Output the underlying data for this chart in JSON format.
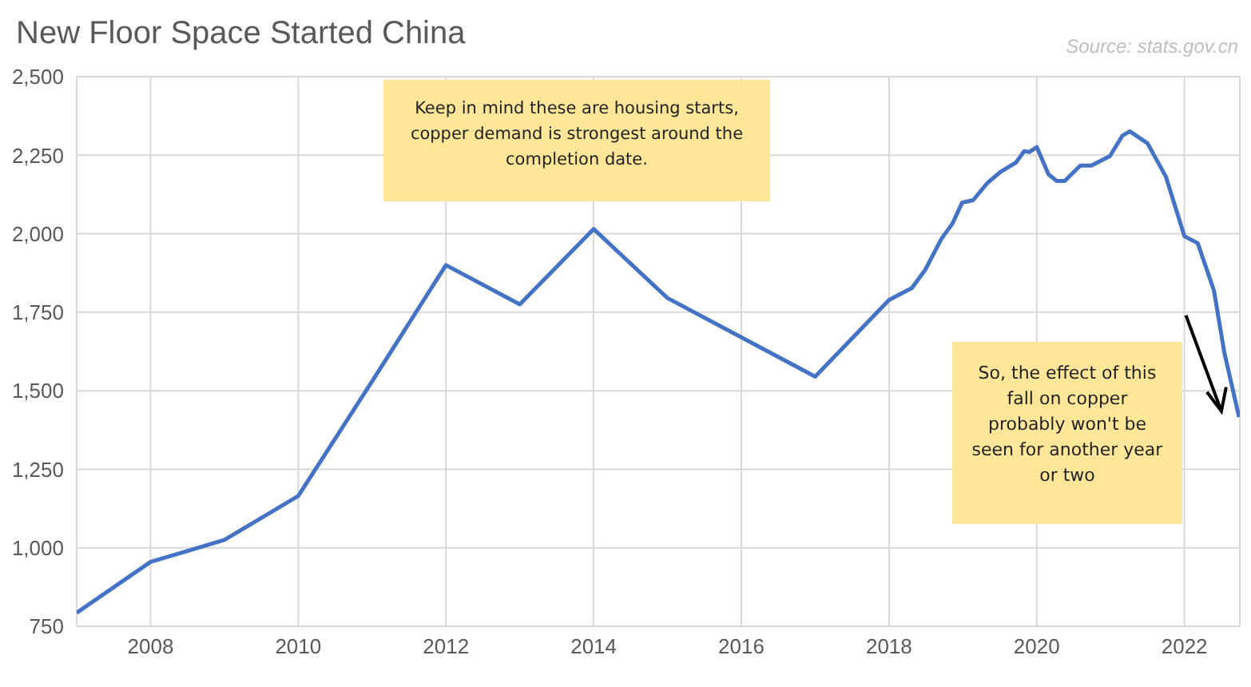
{
  "chart_data": {
    "type": "line",
    "title": "New Floor Space Started China",
    "annotations": [
      "Source: stats.gov.cn",
      "Keep in mind these are housing starts, copper demand is strongest around the completion date.",
      "So, the effect of this fall on copper probably won't be seen for another year or two"
    ],
    "x": [
      2007,
      2008,
      2009,
      2010,
      2011,
      2012,
      2013,
      2014,
      2015,
      2016,
      2017,
      2018,
      2018.31,
      2018.49,
      2018.71,
      2018.86,
      2018.99,
      2019.14,
      2019.33,
      2019.51,
      2019.72,
      2019.83,
      2019.9,
      2020,
      2020.16,
      2020.27,
      2020.38,
      2020.59,
      2020.74,
      2020.99,
      2021.16,
      2021.26,
      2021.5,
      2021.75,
      2022,
      2022.18,
      2022.4,
      2022.54,
      2022.74
    ],
    "series": [
      {
        "color": "#4472c4",
        "values": [
          793,
          955,
          1025,
          1165,
          1530,
          1900,
          1775,
          2015,
          1795,
          1670,
          1545,
          1789,
          1827,
          1885,
          1984,
          2033,
          2099,
          2107,
          2161,
          2197,
          2227,
          2263,
          2260,
          2276,
          2189,
          2168,
          2168,
          2217,
          2217,
          2247,
          2312,
          2326,
          2288,
          2181,
          1992,
          1970,
          1819,
          1622,
          1416
        ]
      }
    ],
    "xlim": [
      2007,
      2022.75
    ],
    "xticks": [
      2008,
      2010,
      2012,
      2014,
      2016,
      2018,
      2020,
      2022
    ],
    "ylim": [
      750,
      2500
    ],
    "yticks": [
      {
        "value": 750,
        "label": "750"
      },
      {
        "value": 1000,
        "label": "1,000"
      },
      {
        "value": 1250,
        "label": "1,250"
      },
      {
        "value": 1500,
        "label": "1,500"
      },
      {
        "value": 1750,
        "label": "1,750"
      },
      {
        "value": 2000,
        "label": "2,000"
      },
      {
        "value": 2250,
        "label": "2,250"
      },
      {
        "value": 2500,
        "label": "2,500"
      }
    ],
    "grid": true,
    "legend": false,
    "marker": "none",
    "line_style": "solid"
  }
}
